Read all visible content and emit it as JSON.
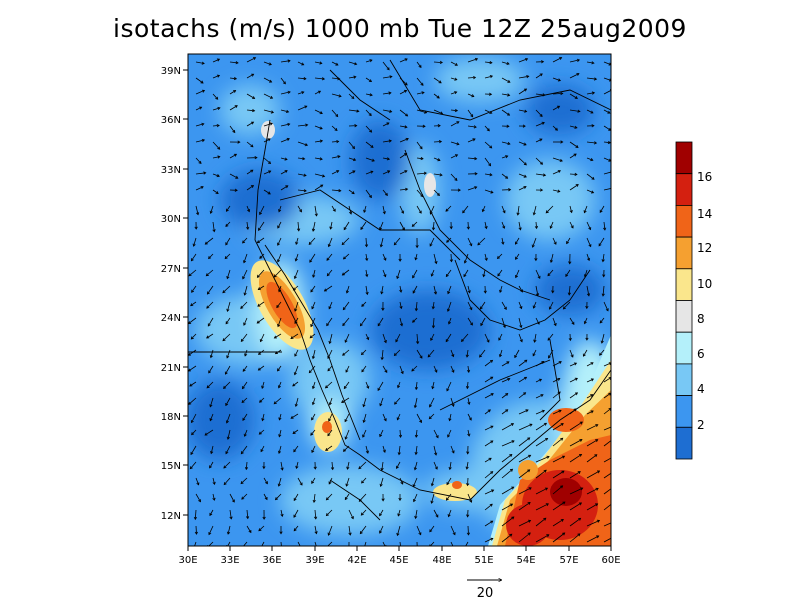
{
  "title": "isotachs (m/s) 1000 mb Tue 12Z 25aug2009",
  "map": {
    "lon_ticks": [
      "30E",
      "33E",
      "36E",
      "39E",
      "42E",
      "45E",
      "48E",
      "51E",
      "54E",
      "57E",
      "60E"
    ],
    "lat_ticks": [
      "39N",
      "36N",
      "33N",
      "30N",
      "27N",
      "24N",
      "21N",
      "18N",
      "15N",
      "12N"
    ]
  },
  "colorbar": {
    "labels": [
      "16",
      "14",
      "12",
      "10",
      "8",
      "6",
      "4",
      "2"
    ],
    "colors": [
      "#a00000",
      "#d42010",
      "#f06418",
      "#f5a030",
      "#fae68c",
      "#e6e6e6",
      "#b4f0fa",
      "#78c8f5",
      "#3c96f0",
      "#1e6ed2"
    ]
  },
  "vector_scale": {
    "label": "20"
  }
}
